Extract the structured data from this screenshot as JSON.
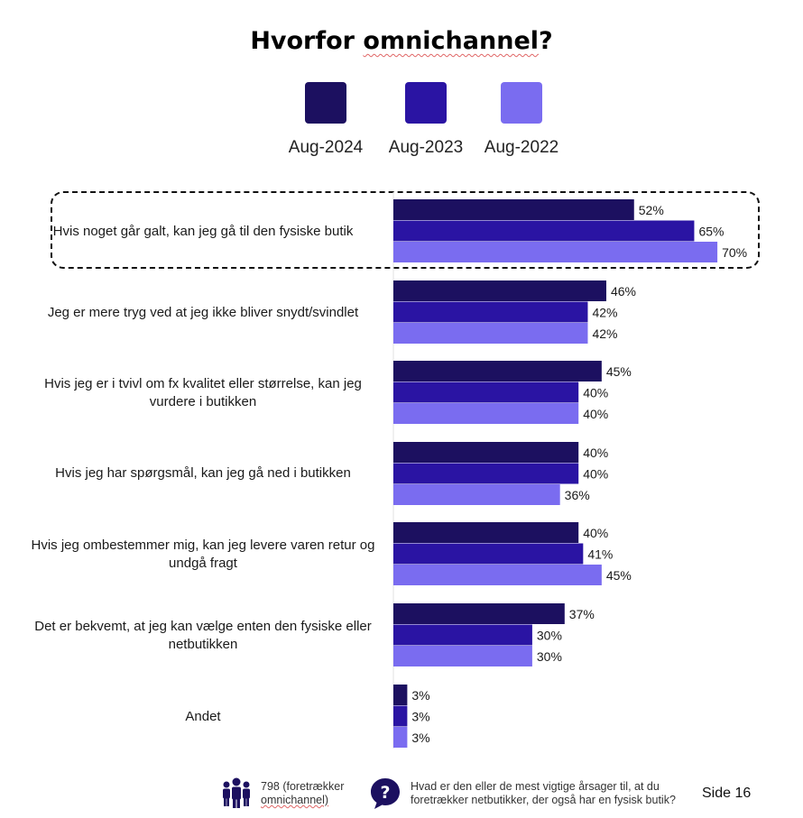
{
  "title_prefix": "Hvorfor ",
  "title_underlined": "omnichannel",
  "title_suffix": "?",
  "legend": [
    {
      "label": "Aug-2024",
      "color": "#1c1060"
    },
    {
      "label": "Aug-2023",
      "color": "#2a14a3"
    },
    {
      "label": "Aug-2022",
      "color": "#7a6cf0"
    }
  ],
  "chart_data": {
    "type": "bar",
    "orientation": "horizontal",
    "categories": [
      "Hvis noget går galt, kan jeg gå til den fysiske butik",
      "Jeg er mere tryg ved at jeg ikke bliver snydt/svindlet",
      "Hvis jeg er i tvivl om fx kvalitet eller størrelse, kan jeg vurdere i butikken",
      "Hvis jeg har spørgsmål, kan jeg gå ned i butikken",
      "Hvis jeg ombestemmer mig, kan jeg levere varen retur og undgå fragt",
      "Det er bekvemt, at jeg kan vælge enten den fysiske eller netbutikken",
      "Andet"
    ],
    "series": [
      {
        "name": "Aug-2024",
        "values": [
          52,
          46,
          45,
          40,
          40,
          37,
          3
        ]
      },
      {
        "name": "Aug-2023",
        "values": [
          65,
          42,
          40,
          40,
          41,
          30,
          3
        ]
      },
      {
        "name": "Aug-2022",
        "values": [
          70,
          42,
          40,
          36,
          45,
          30,
          3
        ]
      }
    ],
    "value_suffix": "%",
    "highlighted_category": "Hvis noget går galt, kan jeg gå til den fysiske butik",
    "xlim": [
      0,
      70
    ]
  },
  "footer": {
    "respondents_line1": "798 (foretrækker",
    "respondents_line2": "omnichannel)",
    "question_line1": "Hvad er den eller de mest vigtige årsager til, at du",
    "question_line2": "foretrækker netbutikker, der også har en fysisk butik?",
    "page": "Side 16",
    "people_icon": "people-icon",
    "question_icon": "question-mark-icon"
  }
}
